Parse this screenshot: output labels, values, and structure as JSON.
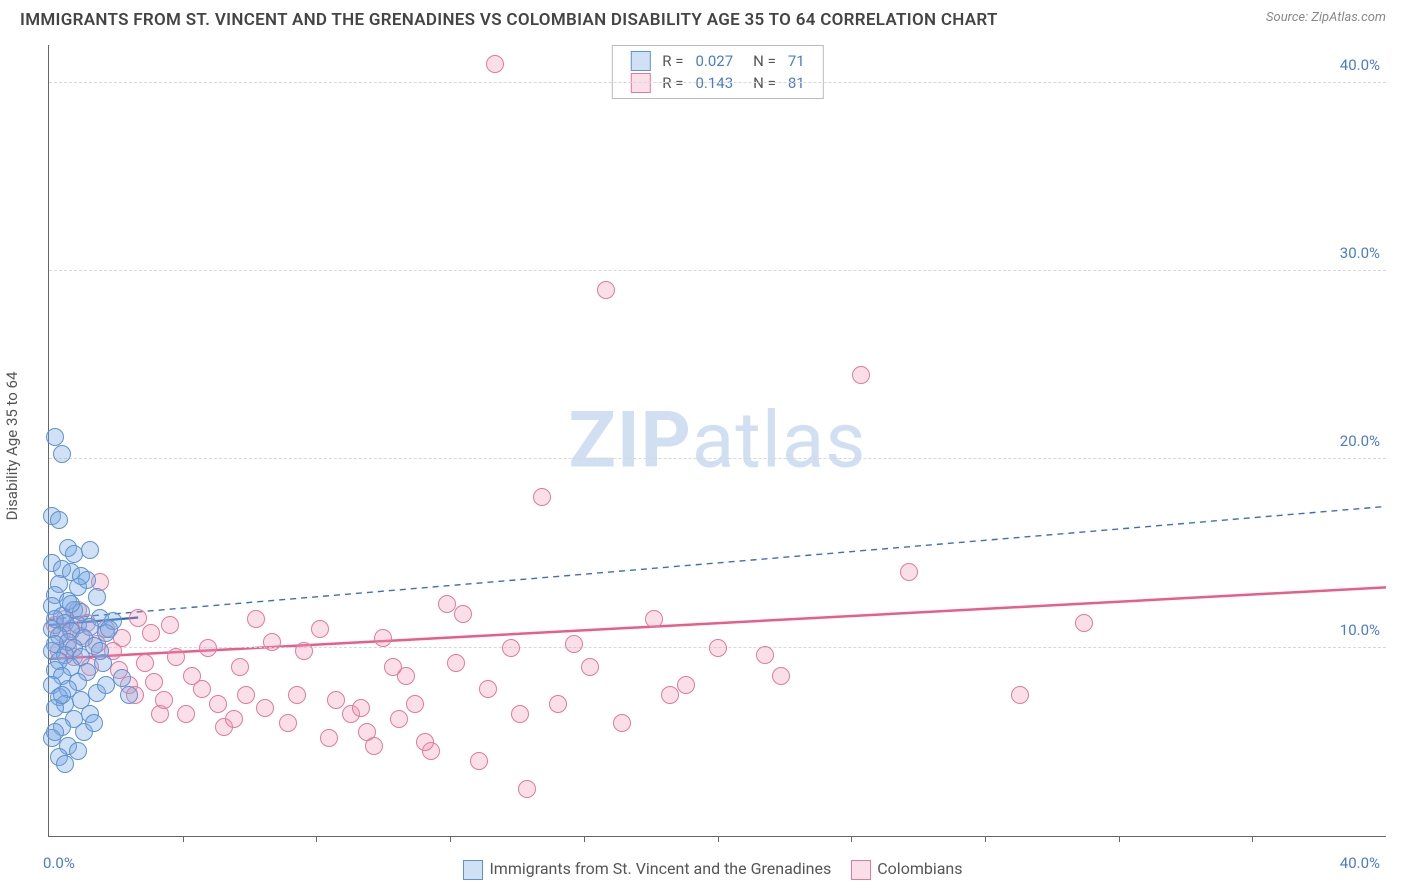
{
  "title": "IMMIGRANTS FROM ST. VINCENT AND THE GRENADINES VS COLOMBIAN DISABILITY AGE 35 TO 64 CORRELATION CHART",
  "source": "Source: ZipAtlas.com",
  "watermark_a": "ZIP",
  "watermark_b": "atlas",
  "chart": {
    "type": "scatter",
    "xlim": [
      0,
      42
    ],
    "ylim": [
      0,
      42
    ],
    "x_origin_label": "0.0%",
    "x_end_label": "40.0%",
    "xtick_positions": [
      4.2,
      8.4,
      12.6,
      16.8,
      21.0,
      25.2,
      29.4,
      33.6,
      37.8
    ],
    "ygrid": [
      {
        "v": 10,
        "label": "10.0%"
      },
      {
        "v": 20,
        "label": "20.0%"
      },
      {
        "v": 30,
        "label": "30.0%"
      },
      {
        "v": 40,
        "label": "40.0%"
      }
    ],
    "ylabel": "Disability Age 35 to 64",
    "background_color": "#ffffff",
    "grid_color": "#d8d8d8",
    "axis_color": "#666666",
    "tick_label_color": "#4a7bd0",
    "marker_radius": 9,
    "marker_stroke_width": 1.2,
    "series": [
      {
        "name": "Immigrants from St. Vincent and the Grenadines",
        "short": "blue",
        "fill": "rgba(120,170,225,0.35)",
        "stroke": "#5d93d3",
        "R": "0.027",
        "N": "71",
        "trend": {
          "type": "dashed",
          "color": "#3f6fb8",
          "width": 1.4,
          "x1": 0,
          "y1": 11.5,
          "x2": 42,
          "y2": 17.5
        },
        "solid_fit": {
          "color": "#2d66b3",
          "width": 2.2,
          "x1": 0,
          "y1": 11.2,
          "x2": 2.8,
          "y2": 11.6
        },
        "points": [
          [
            0.2,
            21.2
          ],
          [
            0.4,
            20.3
          ],
          [
            0.1,
            17.0
          ],
          [
            0.3,
            16.8
          ],
          [
            0.6,
            15.3
          ],
          [
            1.3,
            15.2
          ],
          [
            0.8,
            15.0
          ],
          [
            0.1,
            14.5
          ],
          [
            0.4,
            14.2
          ],
          [
            0.7,
            14.0
          ],
          [
            1.2,
            13.6
          ],
          [
            0.3,
            13.4
          ],
          [
            0.9,
            13.2
          ],
          [
            0.2,
            12.8
          ],
          [
            1.5,
            12.7
          ],
          [
            0.6,
            12.5
          ],
          [
            0.1,
            12.2
          ],
          [
            0.8,
            12.0
          ],
          [
            1.0,
            11.9
          ],
          [
            0.4,
            11.7
          ],
          [
            1.6,
            11.6
          ],
          [
            0.2,
            11.5
          ],
          [
            2.0,
            11.4
          ],
          [
            0.5,
            11.3
          ],
          [
            0.9,
            11.2
          ],
          [
            1.3,
            11.1
          ],
          [
            0.1,
            11.0
          ],
          [
            0.7,
            10.9
          ],
          [
            1.8,
            10.8
          ],
          [
            0.3,
            10.6
          ],
          [
            1.1,
            10.5
          ],
          [
            0.6,
            10.3
          ],
          [
            0.2,
            10.2
          ],
          [
            1.4,
            10.1
          ],
          [
            0.8,
            10.0
          ],
          [
            0.1,
            9.8
          ],
          [
            0.5,
            9.6
          ],
          [
            1.0,
            9.5
          ],
          [
            0.3,
            9.3
          ],
          [
            1.7,
            9.2
          ],
          [
            0.7,
            9.0
          ],
          [
            0.2,
            8.8
          ],
          [
            1.2,
            8.7
          ],
          [
            0.4,
            8.5
          ],
          [
            2.3,
            8.4
          ],
          [
            0.9,
            8.2
          ],
          [
            0.1,
            8.0
          ],
          [
            0.6,
            7.8
          ],
          [
            1.5,
            7.6
          ],
          [
            0.3,
            7.4
          ],
          [
            1.0,
            7.2
          ],
          [
            0.5,
            7.0
          ],
          [
            0.2,
            6.8
          ],
          [
            1.3,
            6.5
          ],
          [
            0.8,
            6.2
          ],
          [
            0.4,
            5.8
          ],
          [
            1.1,
            5.5
          ],
          [
            0.1,
            5.2
          ],
          [
            0.6,
            4.8
          ],
          [
            1.8,
            8.0
          ],
          [
            2.5,
            7.5
          ],
          [
            0.3,
            4.2
          ],
          [
            0.9,
            4.5
          ],
          [
            0.5,
            3.8
          ],
          [
            1.4,
            6.0
          ],
          [
            0.2,
            5.5
          ],
          [
            1.0,
            13.8
          ],
          [
            0.7,
            12.3
          ],
          [
            1.9,
            11.0
          ],
          [
            0.4,
            7.5
          ],
          [
            1.6,
            9.8
          ]
        ]
      },
      {
        "name": "Colombians",
        "short": "pink",
        "fill": "rgba(240,150,180,0.30)",
        "stroke": "#e27a9e",
        "R": "0.143",
        "N": "81",
        "trend": {
          "type": "solid",
          "color": "#e85d8a",
          "width": 2.5,
          "x1": 0,
          "y1": 9.4,
          "x2": 42,
          "y2": 13.2
        },
        "points": [
          [
            14.0,
            41.0
          ],
          [
            17.5,
            29.0
          ],
          [
            25.5,
            24.5
          ],
          [
            15.5,
            18.0
          ],
          [
            27.0,
            14.0
          ],
          [
            32.5,
            11.3
          ],
          [
            30.5,
            7.5
          ],
          [
            20.0,
            8.0
          ],
          [
            22.5,
            9.6
          ],
          [
            19.0,
            11.5
          ],
          [
            16.5,
            10.2
          ],
          [
            14.5,
            10.0
          ],
          [
            13.0,
            11.8
          ],
          [
            12.5,
            12.3
          ],
          [
            11.5,
            7.0
          ],
          [
            11.0,
            6.2
          ],
          [
            10.5,
            10.5
          ],
          [
            10.0,
            5.5
          ],
          [
            9.5,
            6.5
          ],
          [
            9.0,
            7.2
          ],
          [
            8.5,
            11.0
          ],
          [
            8.0,
            9.8
          ],
          [
            7.5,
            6.0
          ],
          [
            7.0,
            10.3
          ],
          [
            6.5,
            11.5
          ],
          [
            6.0,
            9.0
          ],
          [
            5.5,
            5.8
          ],
          [
            5.0,
            10.0
          ],
          [
            4.5,
            8.5
          ],
          [
            4.0,
            9.5
          ],
          [
            3.8,
            11.2
          ],
          [
            3.5,
            6.5
          ],
          [
            3.2,
            10.8
          ],
          [
            3.0,
            9.2
          ],
          [
            2.8,
            11.6
          ],
          [
            2.5,
            8.0
          ],
          [
            2.3,
            10.5
          ],
          [
            2.0,
            9.8
          ],
          [
            1.8,
            11.0
          ],
          [
            1.6,
            13.5
          ],
          [
            1.5,
            10.2
          ],
          [
            1.3,
            9.0
          ],
          [
            1.2,
            11.3
          ],
          [
            1.0,
            10.6
          ],
          [
            0.9,
            12.0
          ],
          [
            0.8,
            9.5
          ],
          [
            0.7,
            11.0
          ],
          [
            0.6,
            10.0
          ],
          [
            0.5,
            11.5
          ],
          [
            0.4,
            10.8
          ],
          [
            0.3,
            9.8
          ],
          [
            0.2,
            11.2
          ],
          [
            12.0,
            4.5
          ],
          [
            13.5,
            4.0
          ],
          [
            15.0,
            2.5
          ],
          [
            11.8,
            5.0
          ],
          [
            10.2,
            4.8
          ],
          [
            9.8,
            6.8
          ],
          [
            8.8,
            5.2
          ],
          [
            7.8,
            7.5
          ],
          [
            6.8,
            6.8
          ],
          [
            6.2,
            7.5
          ],
          [
            5.8,
            6.2
          ],
          [
            5.3,
            7.0
          ],
          [
            4.8,
            7.8
          ],
          [
            4.3,
            6.5
          ],
          [
            3.6,
            7.2
          ],
          [
            3.3,
            8.2
          ],
          [
            2.7,
            7.5
          ],
          [
            2.2,
            8.8
          ],
          [
            14.8,
            6.5
          ],
          [
            16.0,
            7.0
          ],
          [
            18.0,
            6.0
          ],
          [
            19.5,
            7.5
          ],
          [
            21.0,
            10.0
          ],
          [
            17.0,
            9.0
          ],
          [
            23.0,
            8.5
          ],
          [
            11.2,
            8.5
          ],
          [
            12.8,
            9.2
          ],
          [
            13.8,
            7.8
          ],
          [
            10.8,
            9.0
          ]
        ]
      }
    ],
    "legend_x_series": [
      {
        "label": "Immigrants from St. Vincent and the Grenadines"
      },
      {
        "label": "Colombians"
      }
    ]
  }
}
